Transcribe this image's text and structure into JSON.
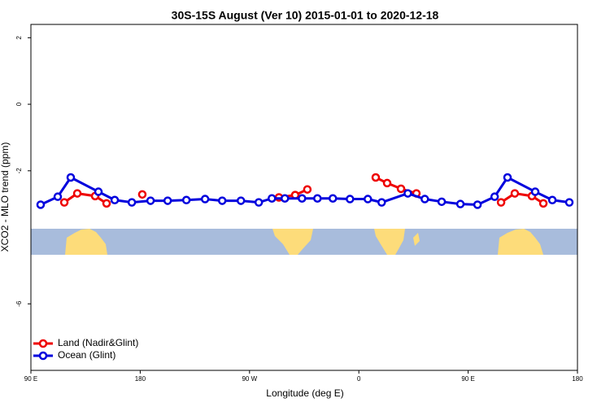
{
  "chart_data": {
    "type": "line",
    "title": "30S-15S August (Ver 10)   2015-01-01 to 2020-12-18",
    "x_label": "Longitude (deg E)",
    "y_label": "XCO2 - MLO trend (ppm)",
    "xlim": [
      90,
      540
    ],
    "xticks": [
      {
        "value": 90,
        "label": "90 E"
      },
      {
        "value": 180,
        "label": "180"
      },
      {
        "value": 270,
        "label": "90 W"
      },
      {
        "value": 360,
        "label": "0"
      },
      {
        "value": 450,
        "label": "90 E"
      },
      {
        "value": 540,
        "label": "180"
      }
    ],
    "ylim": [
      -8,
      2.4
    ],
    "yticks": [
      -6,
      -2,
      0,
      2
    ],
    "legend": "bottom-left",
    "series": [
      {
        "name": "Land (Nadir&Glint)",
        "color": "#ee0000",
        "x": [
          117.5,
          128.2,
          142.9,
          152.3,
          null,
          181.7,
          null,
          294.2,
          307.6,
          317.6,
          null,
          373.9,
          383.3,
          394.7,
          407.4,
          null,
          477.1,
          488.4,
          502.5,
          511.9
        ],
        "values": [
          -2.95,
          -2.68,
          -2.76,
          -2.98,
          null,
          -2.71,
          null,
          -2.8,
          -2.73,
          -2.56,
          null,
          -2.2,
          -2.37,
          -2.54,
          -2.68,
          null,
          -2.95,
          -2.68,
          -2.76,
          -2.98
        ]
      },
      {
        "name": "Ocean (Glint)",
        "color": "#0000dd",
        "x": [
          98.0,
          112.1,
          122.8,
          145.6,
          159.0,
          173.1,
          188.5,
          202.6,
          218.0,
          233.4,
          247.5,
          262.9,
          277.6,
          288.4,
          299.1,
          313.2,
          325.9,
          338.6,
          352.7,
          367.4,
          378.8,
          400.3,
          414.3,
          428.2,
          443.6,
          457.7,
          471.8,
          482.4,
          505.2,
          519.3,
          533.3
        ],
        "values": [
          -3.02,
          -2.78,
          -2.2,
          -2.63,
          -2.88,
          -2.95,
          -2.9,
          -2.9,
          -2.88,
          -2.85,
          -2.9,
          -2.9,
          -2.95,
          -2.83,
          -2.83,
          -2.83,
          -2.83,
          -2.83,
          -2.85,
          -2.85,
          -2.95,
          -2.68,
          -2.85,
          -2.93,
          -3.0,
          -3.02,
          -2.78,
          -2.2,
          -2.63,
          -2.88,
          -2.95
        ]
      }
    ]
  }
}
